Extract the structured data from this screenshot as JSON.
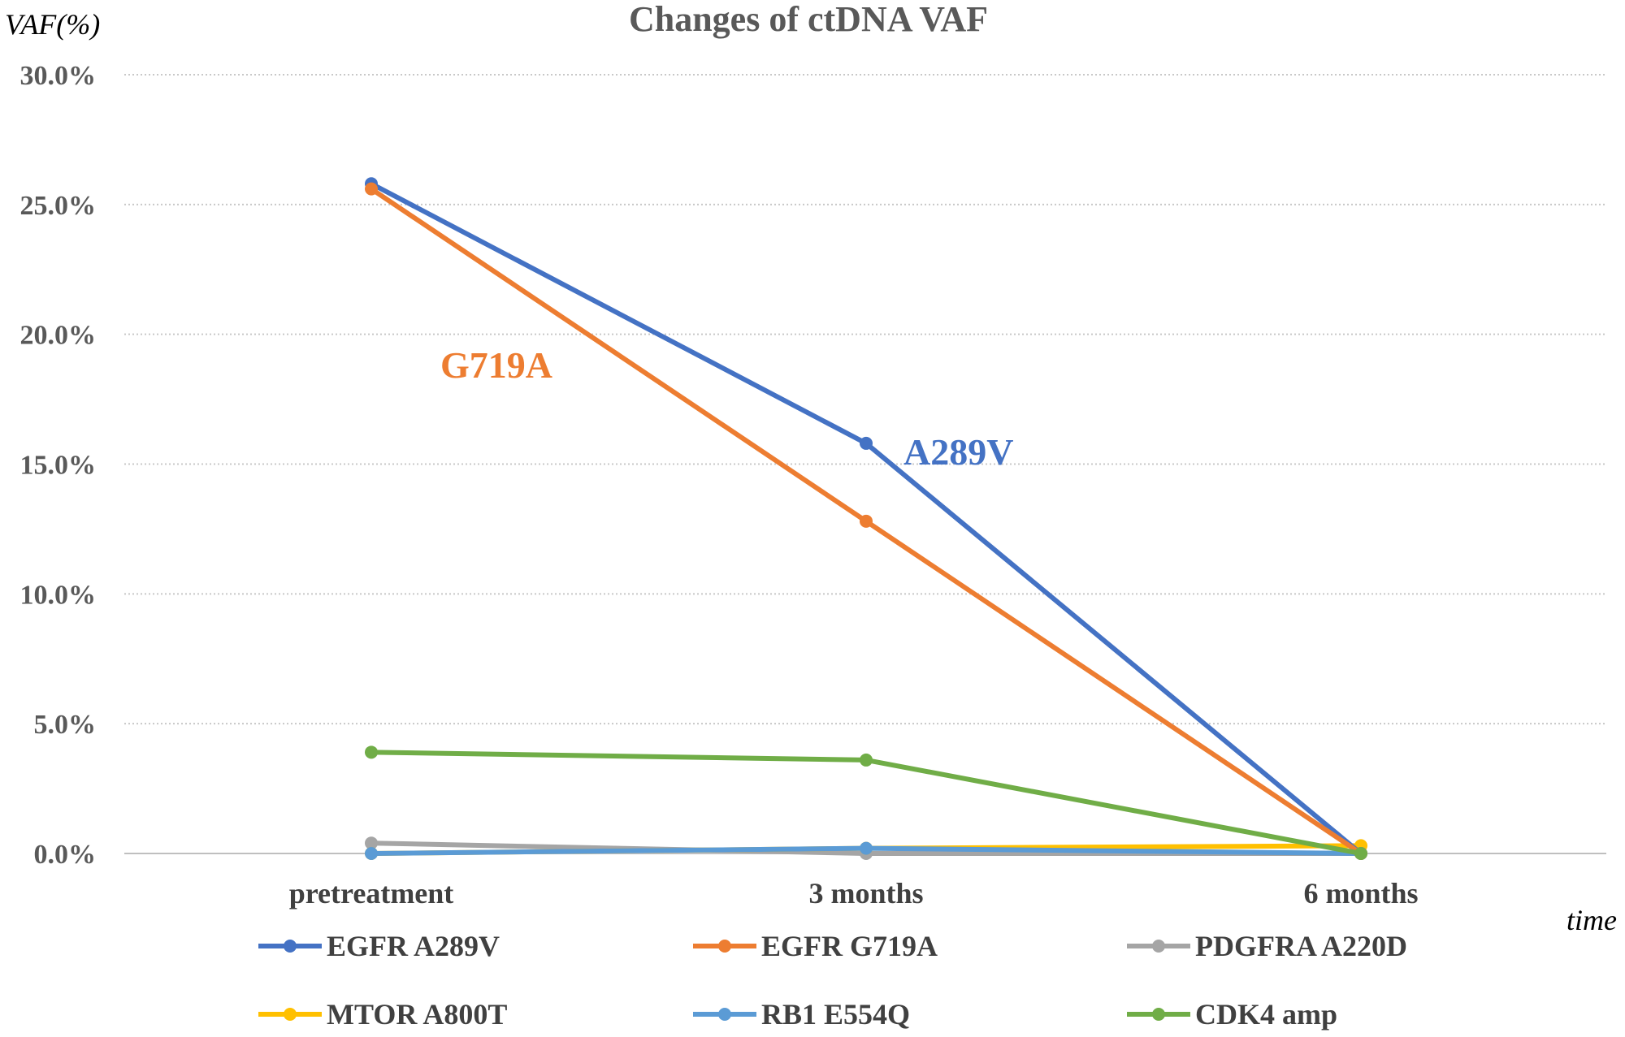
{
  "chart_data": {
    "type": "line",
    "title": "Changes of ctDNA VAF",
    "ylabel": "VAF(%)",
    "xlabel": "time",
    "categories": [
      "pretreatment",
      "3 months",
      "6 months"
    ],
    "ylim": [
      0,
      30
    ],
    "yticks": [
      "0.0%",
      "5.0%",
      "10.0%",
      "15.0%",
      "20.0%",
      "25.0%",
      "30.0%"
    ],
    "grid": true,
    "legend_position": "bottom",
    "series": [
      {
        "name": "EGFR A289V",
        "color": "#4472C4",
        "values": [
          25.8,
          15.8,
          0
        ]
      },
      {
        "name": "EGFR G719A",
        "color": "#ED7D31",
        "values": [
          25.6,
          12.8,
          0
        ]
      },
      {
        "name": "PDGFRA A220D",
        "color": "#A5A5A5",
        "values": [
          0.4,
          0,
          0
        ]
      },
      {
        "name": "MTOR A800T",
        "color": "#FFC000",
        "values": [
          0,
          0.2,
          0.3
        ]
      },
      {
        "name": "RB1 E554Q",
        "color": "#5B9BD5",
        "values": [
          0,
          0.2,
          0
        ]
      },
      {
        "name": "CDK4 amp",
        "color": "#70AD47",
        "values": [
          3.9,
          3.6,
          0
        ]
      }
    ],
    "annotations": [
      {
        "text": "G719A",
        "color": "#ED7D31"
      },
      {
        "text": "A289V",
        "color": "#4472C4"
      }
    ]
  }
}
